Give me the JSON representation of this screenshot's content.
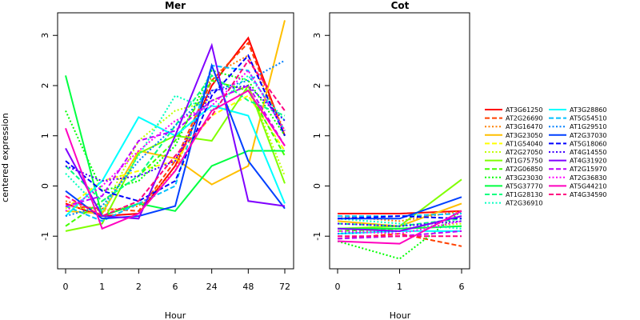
{
  "chart_data": [
    {
      "type": "line",
      "title": "Mer",
      "xlabel": "Hour",
      "ylabel": "centered expression",
      "x": [
        "0",
        "1",
        "2",
        "6",
        "24",
        "48",
        "72"
      ],
      "yticks": [
        -1,
        0,
        1,
        2,
        3
      ],
      "ylim": [
        -1.65,
        3.45
      ],
      "series": [
        {
          "name": "AT3G61250",
          "values": [
            -0.35,
            -0.6,
            -0.55,
            0.4,
            2.0,
            2.95,
            1.0
          ]
        },
        {
          "name": "AT2G26690",
          "values": [
            -0.4,
            -0.45,
            -0.5,
            0.5,
            2.1,
            2.85,
            1.0
          ]
        },
        {
          "name": "AT3G16470",
          "values": [
            -0.3,
            -0.5,
            -0.4,
            0.3,
            2.2,
            2.6,
            1.1
          ]
        },
        {
          "name": "AT3G23050",
          "values": [
            -0.5,
            -0.55,
            0.7,
            0.55,
            0.03,
            0.4,
            3.3
          ]
        },
        {
          "name": "AT1G54040",
          "values": [
            -0.45,
            0.1,
            0.3,
            0.5,
            1.4,
            1.8,
            0.7
          ]
        },
        {
          "name": "AT2G27050",
          "values": [
            -0.4,
            -0.5,
            0.9,
            1.5,
            1.7,
            2.0,
            0.2
          ]
        },
        {
          "name": "AT1G75750",
          "values": [
            -0.9,
            -0.75,
            0.65,
            1.0,
            0.9,
            2.0,
            0.05
          ]
        },
        {
          "name": "AT2G06850",
          "values": [
            -0.8,
            -0.3,
            0.2,
            0.9,
            2.1,
            1.9,
            0.6
          ]
        },
        {
          "name": "AT3G23030",
          "values": [
            1.5,
            -0.1,
            0.1,
            0.8,
            2.3,
            2.1,
            1.0
          ]
        },
        {
          "name": "AT5G37770",
          "values": [
            2.2,
            -0.6,
            -0.35,
            -0.5,
            0.4,
            0.7,
            0.7
          ]
        },
        {
          "name": "AT1G28130",
          "values": [
            0.4,
            -0.3,
            0.2,
            1.2,
            2.2,
            1.7,
            1.4
          ]
        },
        {
          "name": "AT2G36910",
          "values": [
            0.25,
            -0.5,
            0.6,
            1.8,
            1.5,
            2.2,
            1.3
          ]
        },
        {
          "name": "AT3G28860",
          "values": [
            -0.6,
            0.1,
            1.37,
            1.0,
            1.6,
            1.4,
            -0.35
          ]
        },
        {
          "name": "AT5G54510",
          "values": [
            -0.4,
            -0.7,
            -0.35,
            0.0,
            2.4,
            2.3,
            1.1
          ]
        },
        {
          "name": "AT1G29510",
          "values": [
            -0.6,
            -0.4,
            0.5,
            1.2,
            1.9,
            2.1,
            2.5
          ]
        },
        {
          "name": "AT2G37030",
          "values": [
            -0.1,
            -0.65,
            -0.6,
            -0.4,
            2.4,
            0.5,
            -0.45
          ]
        },
        {
          "name": "AT5G18060",
          "values": [
            0.5,
            -0.1,
            -0.3,
            0.1,
            1.8,
            2.6,
            1.0
          ]
        },
        {
          "name": "AT4G14550",
          "values": [
            0.4,
            0.1,
            0.2,
            0.5,
            1.9,
            2.0,
            1.3
          ]
        },
        {
          "name": "AT4G31920",
          "values": [
            0.75,
            -0.6,
            -0.65,
            1.0,
            2.8,
            -0.3,
            -0.4
          ]
        },
        {
          "name": "AT2G15970",
          "values": [
            -0.4,
            -0.2,
            0.9,
            1.1,
            1.7,
            2.0,
            0.8
          ]
        },
        {
          "name": "AT2G36830",
          "values": [
            -0.5,
            0.0,
            0.7,
            1.3,
            1.6,
            2.3,
            1.1
          ]
        },
        {
          "name": "AT5G44210",
          "values": [
            1.15,
            -0.85,
            -0.55,
            0.3,
            1.5,
            1.9,
            0.8
          ]
        },
        {
          "name": "AT4G34590",
          "values": [
            -0.2,
            -0.6,
            -0.3,
            0.6,
            1.4,
            2.5,
            1.5
          ]
        }
      ]
    },
    {
      "type": "line",
      "title": "Cot",
      "xlabel": "Hour",
      "x": [
        "0",
        "1",
        "6"
      ],
      "yticks": [
        -1,
        0,
        1,
        2,
        3
      ],
      "ylim": [
        -1.65,
        3.45
      ],
      "series": [
        {
          "name": "AT3G61250",
          "values": [
            -0.55,
            -0.55,
            -0.5
          ]
        },
        {
          "name": "AT2G26690",
          "values": [
            -1.05,
            -0.95,
            -1.2
          ]
        },
        {
          "name": "AT3G16470",
          "values": [
            -0.6,
            -0.7,
            -0.5
          ]
        },
        {
          "name": "AT3G23050",
          "values": [
            -0.7,
            -0.8,
            -0.35
          ]
        },
        {
          "name": "AT1G54040",
          "values": [
            -0.85,
            -0.9,
            -0.6
          ]
        },
        {
          "name": "AT2G27050",
          "values": [
            -0.95,
            -0.85,
            -0.75
          ]
        },
        {
          "name": "AT1G75750",
          "values": [
            -0.85,
            -0.8,
            0.13
          ]
        },
        {
          "name": "AT2G06850",
          "values": [
            -0.9,
            -0.85,
            -0.8
          ]
        },
        {
          "name": "AT3G23030",
          "values": [
            -1.1,
            -1.45,
            -0.5
          ]
        },
        {
          "name": "AT5G37770",
          "values": [
            -0.85,
            -0.85,
            -0.8
          ]
        },
        {
          "name": "AT1G28130",
          "values": [
            -0.75,
            -0.8,
            -0.65
          ]
        },
        {
          "name": "AT2G36910",
          "values": [
            -0.65,
            -0.75,
            -0.85
          ]
        },
        {
          "name": "AT3G28860",
          "values": [
            -0.95,
            -0.9,
            -0.9
          ]
        },
        {
          "name": "AT5G54510",
          "values": [
            -0.6,
            -0.6,
            -0.55
          ]
        },
        {
          "name": "AT1G29510",
          "values": [
            -0.95,
            -0.9,
            -0.6
          ]
        },
        {
          "name": "AT2G37030",
          "values": [
            -0.65,
            -0.65,
            -0.22
          ]
        },
        {
          "name": "AT5G18060",
          "values": [
            -0.65,
            -0.6,
            -0.65
          ]
        },
        {
          "name": "AT4G14550",
          "values": [
            -0.75,
            -0.8,
            -0.7
          ]
        },
        {
          "name": "AT4G31920",
          "values": [
            -0.85,
            -0.9,
            -0.6
          ]
        },
        {
          "name": "AT2G15970",
          "values": [
            -1.05,
            -1.0,
            -0.9
          ]
        },
        {
          "name": "AT2G36830",
          "values": [
            -0.9,
            -0.95,
            -0.7
          ]
        },
        {
          "name": "AT5G44210",
          "values": [
            -1.1,
            -1.15,
            -0.5
          ]
        },
        {
          "name": "AT4G34590",
          "values": [
            -1.0,
            -1.0,
            -1.0
          ]
        }
      ]
    }
  ],
  "legend": {
    "placement": "right",
    "entries": [
      {
        "name": "AT3G61250",
        "color": "#ff0000",
        "dash": "solid"
      },
      {
        "name": "AT2G26690",
        "color": "#ff4000",
        "dash": "dashed"
      },
      {
        "name": "AT3G16470",
        "color": "#ff8000",
        "dash": "dotted"
      },
      {
        "name": "AT3G23050",
        "color": "#ffbf00",
        "dash": "solid"
      },
      {
        "name": "AT1G54040",
        "color": "#ffff00",
        "dash": "dashed"
      },
      {
        "name": "AT2G27050",
        "color": "#bfff00",
        "dash": "dotted"
      },
      {
        "name": "AT1G75750",
        "color": "#80ff00",
        "dash": "solid"
      },
      {
        "name": "AT2G06850",
        "color": "#40ff00",
        "dash": "dashed"
      },
      {
        "name": "AT3G23030",
        "color": "#00ff00",
        "dash": "dotted"
      },
      {
        "name": "AT5G37770",
        "color": "#00ff40",
        "dash": "solid"
      },
      {
        "name": "AT1G28130",
        "color": "#00ff80",
        "dash": "dashed"
      },
      {
        "name": "AT2G36910",
        "color": "#00ffbf",
        "dash": "dotted"
      },
      {
        "name": "AT3G28860",
        "color": "#00ffff",
        "dash": "solid"
      },
      {
        "name": "AT5G54510",
        "color": "#00bfff",
        "dash": "dashed"
      },
      {
        "name": "AT1G29510",
        "color": "#0080ff",
        "dash": "dotted"
      },
      {
        "name": "AT2G37030",
        "color": "#0040ff",
        "dash": "solid"
      },
      {
        "name": "AT5G18060",
        "color": "#0000ff",
        "dash": "dashed"
      },
      {
        "name": "AT4G14550",
        "color": "#4000ff",
        "dash": "dotted"
      },
      {
        "name": "AT4G31920",
        "color": "#8000ff",
        "dash": "solid"
      },
      {
        "name": "AT2G15970",
        "color": "#bf00ff",
        "dash": "dashed"
      },
      {
        "name": "AT2G36830",
        "color": "#ff00ff",
        "dash": "dotted"
      },
      {
        "name": "AT5G44210",
        "color": "#ff00bf",
        "dash": "solid"
      },
      {
        "name": "AT4G34590",
        "color": "#ff0080",
        "dash": "dashed"
      }
    ]
  }
}
